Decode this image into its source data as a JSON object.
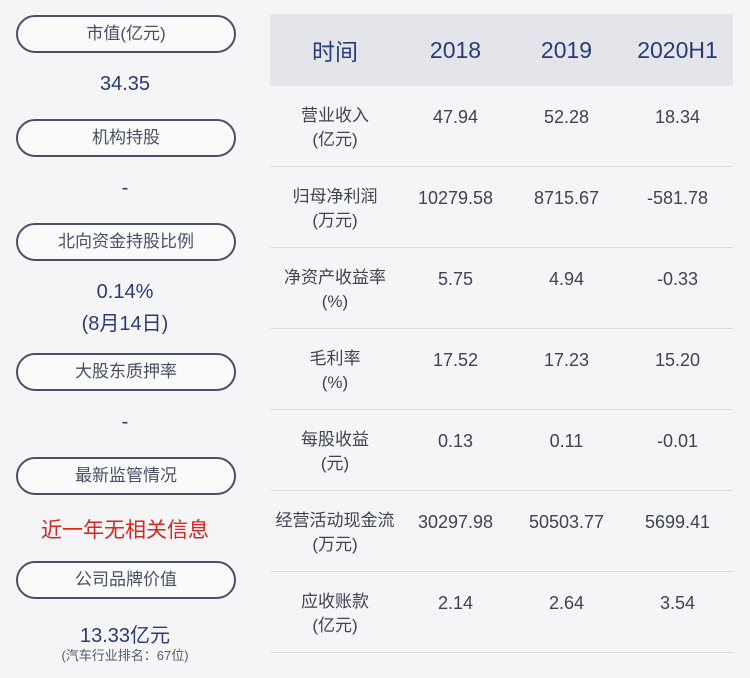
{
  "left": {
    "market_cap": {
      "label": "市值(亿元)",
      "value": "34.35"
    },
    "institution": {
      "label": "机构持股",
      "value": "-"
    },
    "northbound": {
      "label": "北向资金持股比例",
      "value": "0.14%",
      "note": "(8月14日)"
    },
    "pledge": {
      "label": "大股东质押率",
      "value": "-"
    },
    "regulation": {
      "label": "最新监管情况",
      "value": "近一年无相关信息"
    },
    "brand": {
      "label": "公司品牌价值",
      "value": "13.33亿元",
      "rank": "(汽车行业排名：67位)"
    }
  },
  "table": {
    "headers": [
      "时间",
      "2018",
      "2019",
      "2020H1"
    ],
    "rows": [
      {
        "label": "营业收入",
        "unit": "(亿元)",
        "values": [
          "47.94",
          "52.28",
          "18.34"
        ]
      },
      {
        "label": "归母净利润",
        "unit": "(万元)",
        "values": [
          "10279.58",
          "8715.67",
          "-581.78"
        ]
      },
      {
        "label": "净资产收益率",
        "unit": "(%)",
        "values": [
          "5.75",
          "4.94",
          "-0.33"
        ]
      },
      {
        "label": "毛利率",
        "unit": "(%)",
        "values": [
          "17.52",
          "17.23",
          "15.20"
        ]
      },
      {
        "label": "每股收益",
        "unit": "(元)",
        "values": [
          "0.13",
          "0.11",
          "-0.01"
        ]
      },
      {
        "label": "经营活动现金流",
        "unit": "(万元)",
        "values": [
          "30297.98",
          "50503.77",
          "5699.41"
        ]
      },
      {
        "label": "应收账款",
        "unit": "(亿元)",
        "values": [
          "2.14",
          "2.64",
          "3.54"
        ]
      }
    ]
  }
}
